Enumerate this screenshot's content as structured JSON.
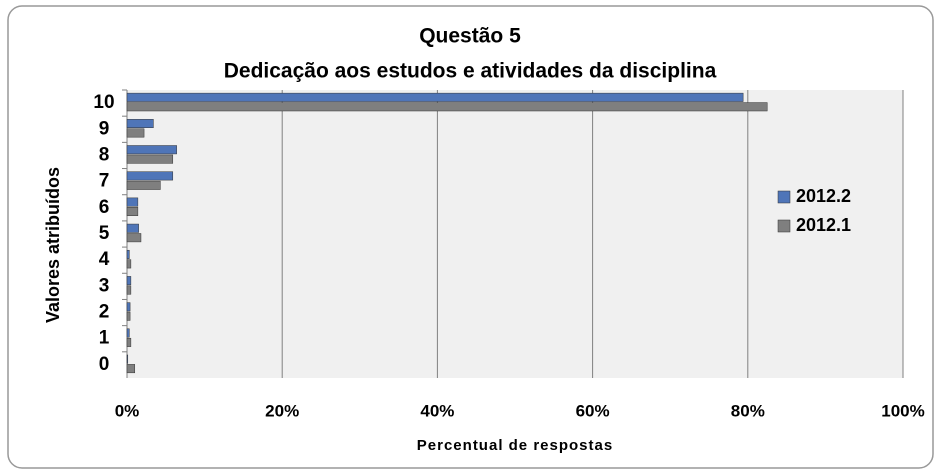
{
  "chart_data": {
    "type": "barh",
    "title": "Questão  5",
    "subtitle": "Dedicação aos estudos e atividades da disciplina",
    "x_label": "Percentual de respostas",
    "y_label": "Valores atribuídos",
    "categories": [
      "0",
      "1",
      "2",
      "3",
      "4",
      "5",
      "6",
      "7",
      "8",
      "9",
      "10"
    ],
    "series": [
      {
        "name": "2012.2",
        "color": "#4f75b8",
        "values": [
          0.1,
          0.3,
          0.4,
          0.5,
          0.3,
          1.5,
          1.4,
          5.9,
          6.4,
          3.4,
          79.4
        ]
      },
      {
        "name": "2012.1",
        "color": "#7f7f7f",
        "values": [
          1.0,
          0.5,
          0.4,
          0.5,
          0.5,
          1.8,
          1.4,
          4.3,
          5.9,
          2.2,
          82.5
        ]
      }
    ],
    "xlim": [
      0,
      100
    ],
    "xticks": [
      {
        "value": 0,
        "label": "0%"
      },
      {
        "value": 20,
        "label": "20%"
      },
      {
        "value": 40,
        "label": "40%"
      },
      {
        "value": 60,
        "label": "60%"
      },
      {
        "value": 80,
        "label": "80%"
      },
      {
        "value": 100,
        "label": "100%"
      }
    ],
    "grid": true,
    "legend": "right"
  }
}
